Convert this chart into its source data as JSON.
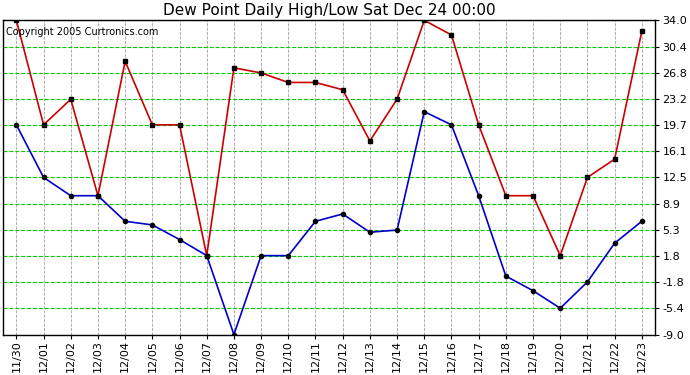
{
  "title": "Dew Point Daily High/Low Sat Dec 24 00:00",
  "copyright": "Copyright 2005 Curtronics.com",
  "x_labels": [
    "11/30",
    "12/01",
    "12/02",
    "12/03",
    "12/04",
    "12/05",
    "12/06",
    "12/07",
    "12/08",
    "12/09",
    "12/10",
    "12/11",
    "12/12",
    "12/13",
    "12/14",
    "12/15",
    "12/16",
    "12/17",
    "12/18",
    "12/19",
    "12/20",
    "12/21",
    "12/22",
    "12/23"
  ],
  "high_values": [
    34.0,
    19.7,
    23.2,
    10.0,
    28.4,
    19.7,
    19.7,
    1.8,
    27.5,
    26.8,
    25.5,
    25.5,
    24.5,
    17.5,
    23.2,
    34.0,
    32.0,
    19.7,
    10.0,
    10.0,
    1.8,
    12.5,
    15.0,
    32.5
  ],
  "low_values": [
    19.7,
    12.5,
    10.0,
    10.0,
    6.5,
    6.0,
    4.0,
    1.8,
    -9.0,
    1.8,
    1.8,
    6.5,
    7.5,
    5.0,
    5.3,
    21.5,
    19.7,
    10.0,
    -1.0,
    -3.0,
    -5.4,
    -1.8,
    3.5,
    6.5
  ],
  "ylim": [
    -9.0,
    34.0
  ],
  "yticks": [
    34.0,
    30.4,
    26.8,
    23.2,
    19.7,
    16.1,
    12.5,
    8.9,
    5.3,
    1.8,
    -1.8,
    -5.4,
    -9.0
  ],
  "bg_color": "#ffffff",
  "plot_bg_color": "#ffffff",
  "hgrid_color": "#00cc00",
  "vgrid_color": "#888888",
  "high_color": "#cc0000",
  "low_color": "#0000cc",
  "marker_color": "#000000",
  "title_color": "#000000",
  "title_fontsize": 11,
  "tick_fontsize": 8,
  "copyright_fontsize": 7
}
